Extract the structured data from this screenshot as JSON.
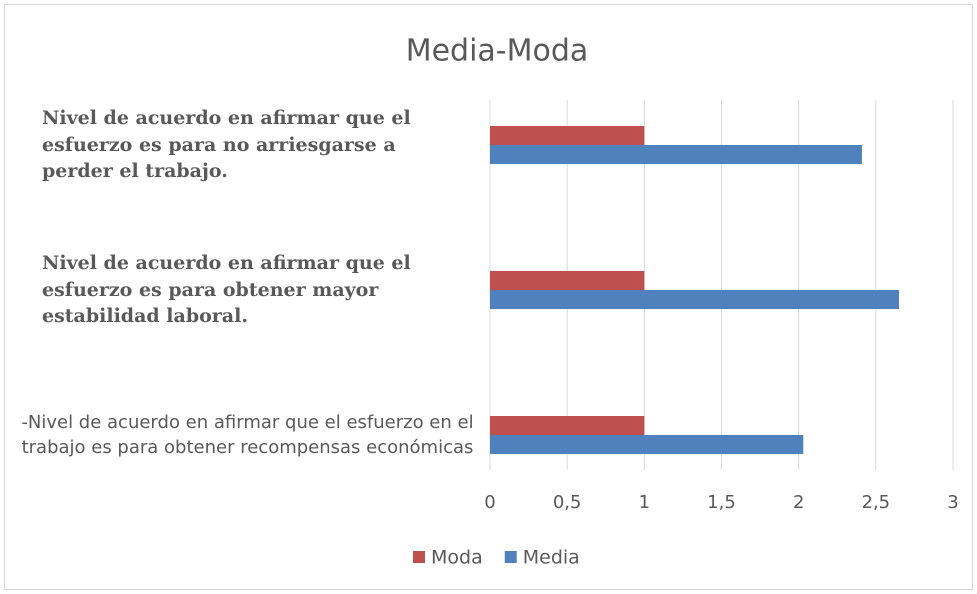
{
  "chart_data": {
    "type": "bar",
    "orientation": "horizontal",
    "title": "Media-Moda",
    "categories": [
      "Nivel de acuerdo en afirmar que el esfuerzo es para no arriesgarse a perder el trabajo.",
      "Nivel de acuerdo en afirmar que el esfuerzo es para  obtener mayor estabilidad laboral.",
      "-Nivel de acuerdo en afirmar que el esfuerzo en el trabajo es para obtener recompensas económicas"
    ],
    "series": [
      {
        "name": "Moda",
        "color": "#c0504d",
        "values": [
          1,
          1,
          1
        ]
      },
      {
        "name": "Media",
        "color": "#4f81bd",
        "values": [
          2.41,
          2.65,
          2.03
        ]
      }
    ],
    "xlim": [
      0,
      3
    ],
    "xticks": [
      0,
      {
        "value": 0.5,
        "label": "0,5"
      },
      1,
      {
        "value": 1.5,
        "label": "1,5"
      },
      2,
      {
        "value": 2.5,
        "label": "2,5"
      },
      3
    ],
    "grid": true,
    "legend": "bottom"
  }
}
